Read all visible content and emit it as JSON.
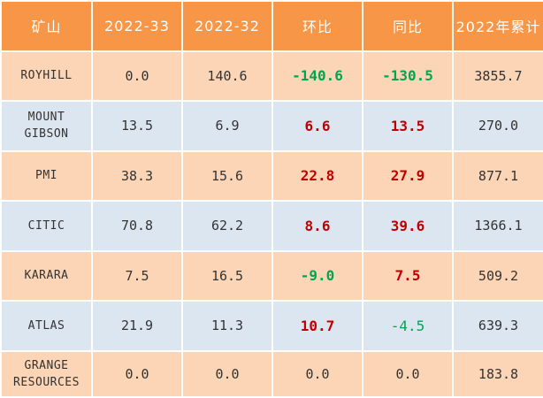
{
  "columns": [
    "矿山",
    "2022-33",
    "2022-32",
    "环比",
    "同比",
    "2022年累计"
  ],
  "rows": [
    {
      "mine": "ROYHILL",
      "w33": "0.0",
      "w32": "140.6",
      "wow": "-140.6",
      "yoy": "-130.5",
      "ytd": "3855.7"
    },
    {
      "mine": "MOUNT GIBSON",
      "w33": "13.5",
      "w32": "6.9",
      "wow": "6.6",
      "yoy": "13.5",
      "ytd": "270.0"
    },
    {
      "mine": "PMI",
      "w33": "38.3",
      "w32": "15.6",
      "wow": "22.8",
      "yoy": "27.9",
      "ytd": "877.1"
    },
    {
      "mine": "CITIC",
      "w33": "70.8",
      "w32": "62.2",
      "wow": "8.6",
      "yoy": "39.6",
      "ytd": "1366.1"
    },
    {
      "mine": "KARARA",
      "w33": "7.5",
      "w32": "16.5",
      "wow": "-9.0",
      "yoy": "7.5",
      "ytd": "509.2"
    },
    {
      "mine": "ATLAS",
      "w33": "21.9",
      "w32": "11.3",
      "wow": "10.7",
      "yoy": "-4.5",
      "ytd": "639.3"
    },
    {
      "mine": "GRANGE RESOURCES",
      "w33": "0.0",
      "w32": "0.0",
      "wow": "0.0",
      "yoy": "0.0",
      "ytd": "183.8"
    }
  ],
  "colors": {
    "header_bg": "#f79646",
    "odd_row_bg": "#fbd5b5",
    "even_row_bg": "#dce6f1",
    "increase": "#c00000",
    "decrease": "#00a550"
  }
}
